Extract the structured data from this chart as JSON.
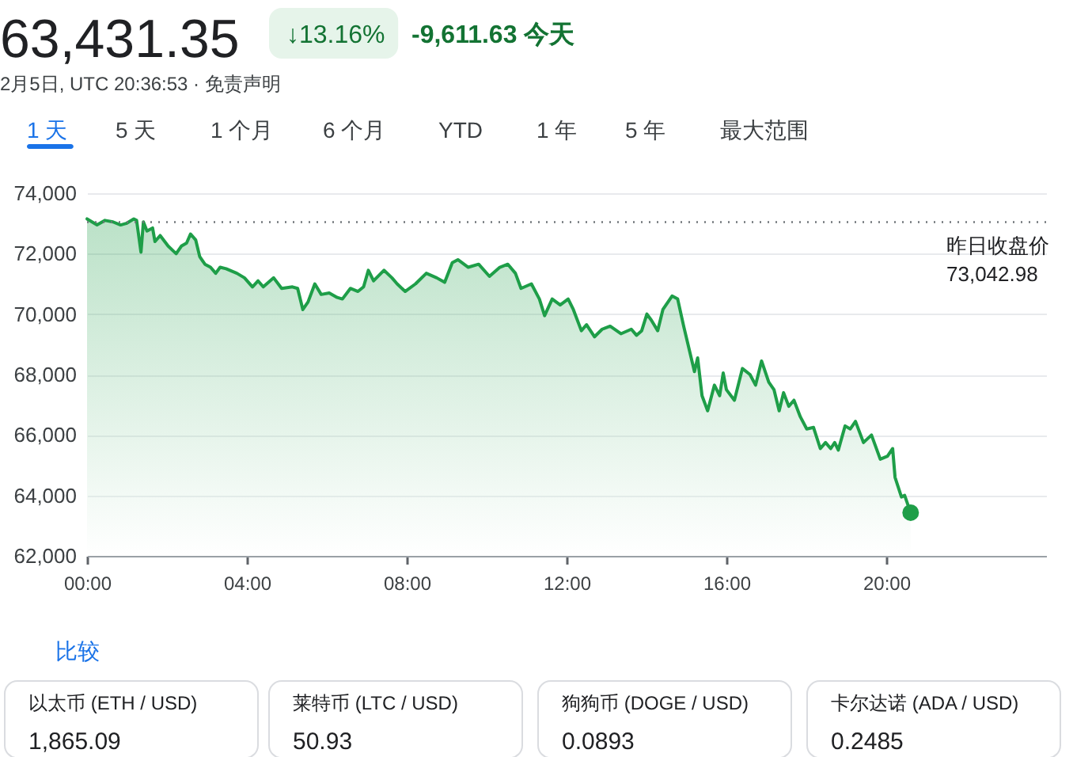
{
  "chart_data": {
    "type": "area",
    "title": "63,431.35",
    "subtitle": "2月5日, UTC 20:36:53 · 免责声明",
    "annotations": [
      "↓13.16%",
      "-9,611.63 今天",
      "1 天",
      "5 天",
      "1 个月",
      "6 个月",
      "YTD",
      "1 年",
      "5 年",
      "最大范围",
      "比较",
      "以太币 (ETH / USD)",
      "1,865.09",
      "莱特币 (LTC / USD)",
      "50.93",
      "狗狗币 (DOGE / USD)",
      "0.0893",
      "卡尔达诺 (ADA / USD)",
      "0.2485"
    ],
    "x": [
      0,
      0.25,
      0.45,
      0.65,
      0.84,
      0.98,
      1.17,
      1.24,
      1.35,
      1.41,
      1.5,
      1.64,
      1.7,
      1.83,
      2.03,
      2.23,
      2.36,
      2.49,
      2.59,
      2.72,
      2.82,
      2.95,
      3.09,
      3.22,
      3.33,
      3.48,
      3.75,
      3.94,
      4.14,
      4.28,
      4.41,
      4.67,
      4.87,
      5.14,
      5.27,
      5.4,
      5.53,
      5.7,
      5.86,
      6.06,
      6.26,
      6.39,
      6.59,
      6.78,
      6.92,
      7.04,
      7.17,
      7.43,
      7.63,
      7.76,
      7.96,
      8.22,
      8.49,
      8.75,
      8.95,
      9.14,
      9.28,
      9.54,
      9.8,
      10.07,
      10.33,
      10.53,
      10.72,
      10.86,
      11.12,
      11.32,
      11.45,
      11.64,
      11.84,
      12.04,
      12.17,
      12.37,
      12.5,
      12.7,
      12.89,
      13.09,
      13.36,
      13.62,
      13.75,
      13.88,
      14.01,
      14.12,
      14.28,
      14.41,
      14.64,
      14.78,
      14.93,
      15.2,
      15.28,
      15.39,
      15.53,
      15.7,
      15.83,
      15.92,
      16.0,
      16.2,
      16.4,
      16.59,
      16.73,
      16.88,
      17.06,
      17.19,
      17.32,
      17.43,
      17.56,
      17.69,
      17.85,
      18.01,
      18.18,
      18.35,
      18.48,
      18.61,
      18.71,
      18.8,
      18.97,
      19.1,
      19.23,
      19.43,
      19.63,
      19.85,
      20.03,
      20.16,
      20.22,
      20.38,
      20.46,
      20.61
    ],
    "series": [
      {
        "color": "#1e9e48",
        "values": [
          73150,
          72950,
          73100,
          73050,
          72950,
          73000,
          73150,
          73100,
          72050,
          73050,
          72750,
          72850,
          72400,
          72600,
          72250,
          72000,
          72250,
          72350,
          72650,
          72450,
          71900,
          71650,
          71550,
          71350,
          71550,
          71500,
          71350,
          71200,
          70900,
          71100,
          70900,
          71200,
          70850,
          70900,
          70850,
          70150,
          70400,
          71000,
          70650,
          70700,
          70550,
          70500,
          70850,
          70750,
          70900,
          71450,
          71100,
          71450,
          71200,
          71000,
          70750,
          71000,
          71350,
          71200,
          71050,
          71700,
          71800,
          71550,
          71650,
          71250,
          71550,
          71650,
          71350,
          70850,
          71000,
          70500,
          69950,
          70500,
          70300,
          70500,
          70150,
          69450,
          69650,
          69250,
          69500,
          69600,
          69350,
          69500,
          69300,
          69450,
          70000,
          69800,
          69450,
          70150,
          70600,
          70500,
          69600,
          68100,
          68550,
          67300,
          66800,
          67650,
          67300,
          68050,
          67500,
          67150,
          68200,
          68000,
          67650,
          68450,
          67750,
          67500,
          66800,
          67400,
          66950,
          67150,
          66600,
          66200,
          66250,
          65550,
          65750,
          65550,
          65750,
          65500,
          66300,
          66200,
          66450,
          65750,
          66000,
          65200,
          65300,
          65550,
          64600,
          63950,
          64000,
          63430
        ]
      },
      {
        "type": "scatter",
        "color": "#1e9e48",
        "x": [
          20.61
        ],
        "values": [
          63430
        ]
      }
    ],
    "xlim": [
      0,
      24
    ],
    "xticks": [
      {
        "value": 0,
        "label": "00:00"
      },
      {
        "value": 4,
        "label": "04:00"
      },
      {
        "value": 8,
        "label": "08:00"
      },
      {
        "value": 12,
        "label": "12:00"
      },
      {
        "value": 16,
        "label": "16:00"
      },
      {
        "value": 20,
        "label": "20:00"
      }
    ],
    "ylim": [
      62000,
      74000
    ],
    "yticks": [
      {
        "value": 62000,
        "label": "62,000"
      },
      {
        "value": 64000,
        "label": "64,000"
      },
      {
        "value": 66000,
        "label": "66,000"
      },
      {
        "value": 68000,
        "label": "68,000"
      },
      {
        "value": 70000,
        "label": "70,000"
      },
      {
        "value": 72000,
        "label": "72,000"
      },
      {
        "value": 74000,
        "label": "74,000"
      }
    ],
    "ref_lines": [
      {
        "axis": "y",
        "value": 73042.98,
        "label": "昨日收盘价 73,042.98",
        "line_style": "dotted",
        "color": "#70757a"
      }
    ],
    "grid": "y",
    "legend": false
  }
}
